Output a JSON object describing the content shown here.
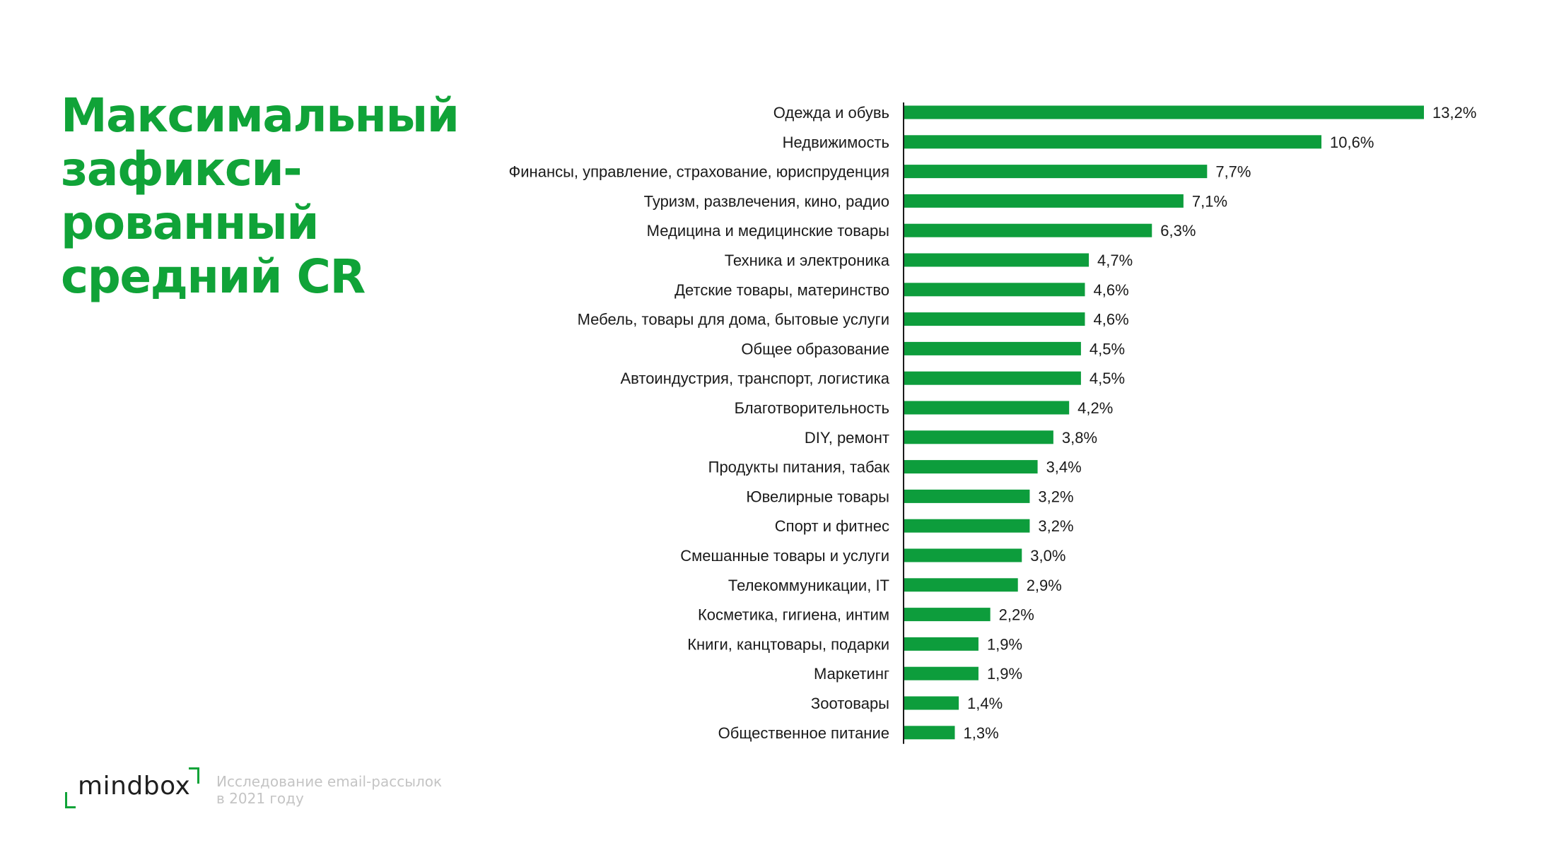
{
  "title_lines": [
    "Максимальный",
    "зафикси-",
    "рованный",
    "средний CR"
  ],
  "brand": {
    "logo_text": "mindbox",
    "accent_color": "#10a338"
  },
  "footer": {
    "line1": "Исследование email-рассылок",
    "line2": "в 2021 году"
  },
  "chart_data": {
    "type": "bar",
    "orientation": "horizontal",
    "bar_color": "#0d9d3c",
    "unit": "%",
    "xlim": [
      0,
      13.2
    ],
    "categories": [
      "Одежда и обувь",
      "Недвижимость",
      "Финансы, управление, страхование, юриспруденция",
      "Туризм, развлечения, кино, радио",
      "Медицина и медицинские товары",
      "Техника и электроника",
      "Детские товары, материнство",
      "Мебель, товары для дома, бытовые услуги",
      "Общее образование",
      "Автоиндустрия, транспорт, логистика",
      "Благотворительность",
      "DIY, ремонт",
      "Продукты питания, табак",
      "Ювелирные товары",
      "Спорт и фитнес",
      "Смешанные товары и услуги",
      "Телекоммуникации, IT",
      "Косметика, гигиена, интим",
      "Книги, канцтовары, подарки",
      "Маркетинг",
      "Зоотовары",
      "Общественное питание"
    ],
    "values": [
      13.2,
      10.6,
      7.7,
      7.1,
      6.3,
      4.7,
      4.6,
      4.6,
      4.5,
      4.5,
      4.2,
      3.8,
      3.4,
      3.2,
      3.2,
      3.0,
      2.9,
      2.2,
      1.9,
      1.9,
      1.4,
      1.3
    ],
    "value_labels": [
      "13,2%",
      "10,6%",
      "7,7%",
      "7,1%",
      "6,3%",
      "4,7%",
      "4,6%",
      "4,6%",
      "4,5%",
      "4,5%",
      "4,2%",
      "3,8%",
      "3,4%",
      "3,2%",
      "3,2%",
      "3,0%",
      "2,9%",
      "2,2%",
      "1,9%",
      "1,9%",
      "1,4%",
      "1,3%"
    ]
  }
}
